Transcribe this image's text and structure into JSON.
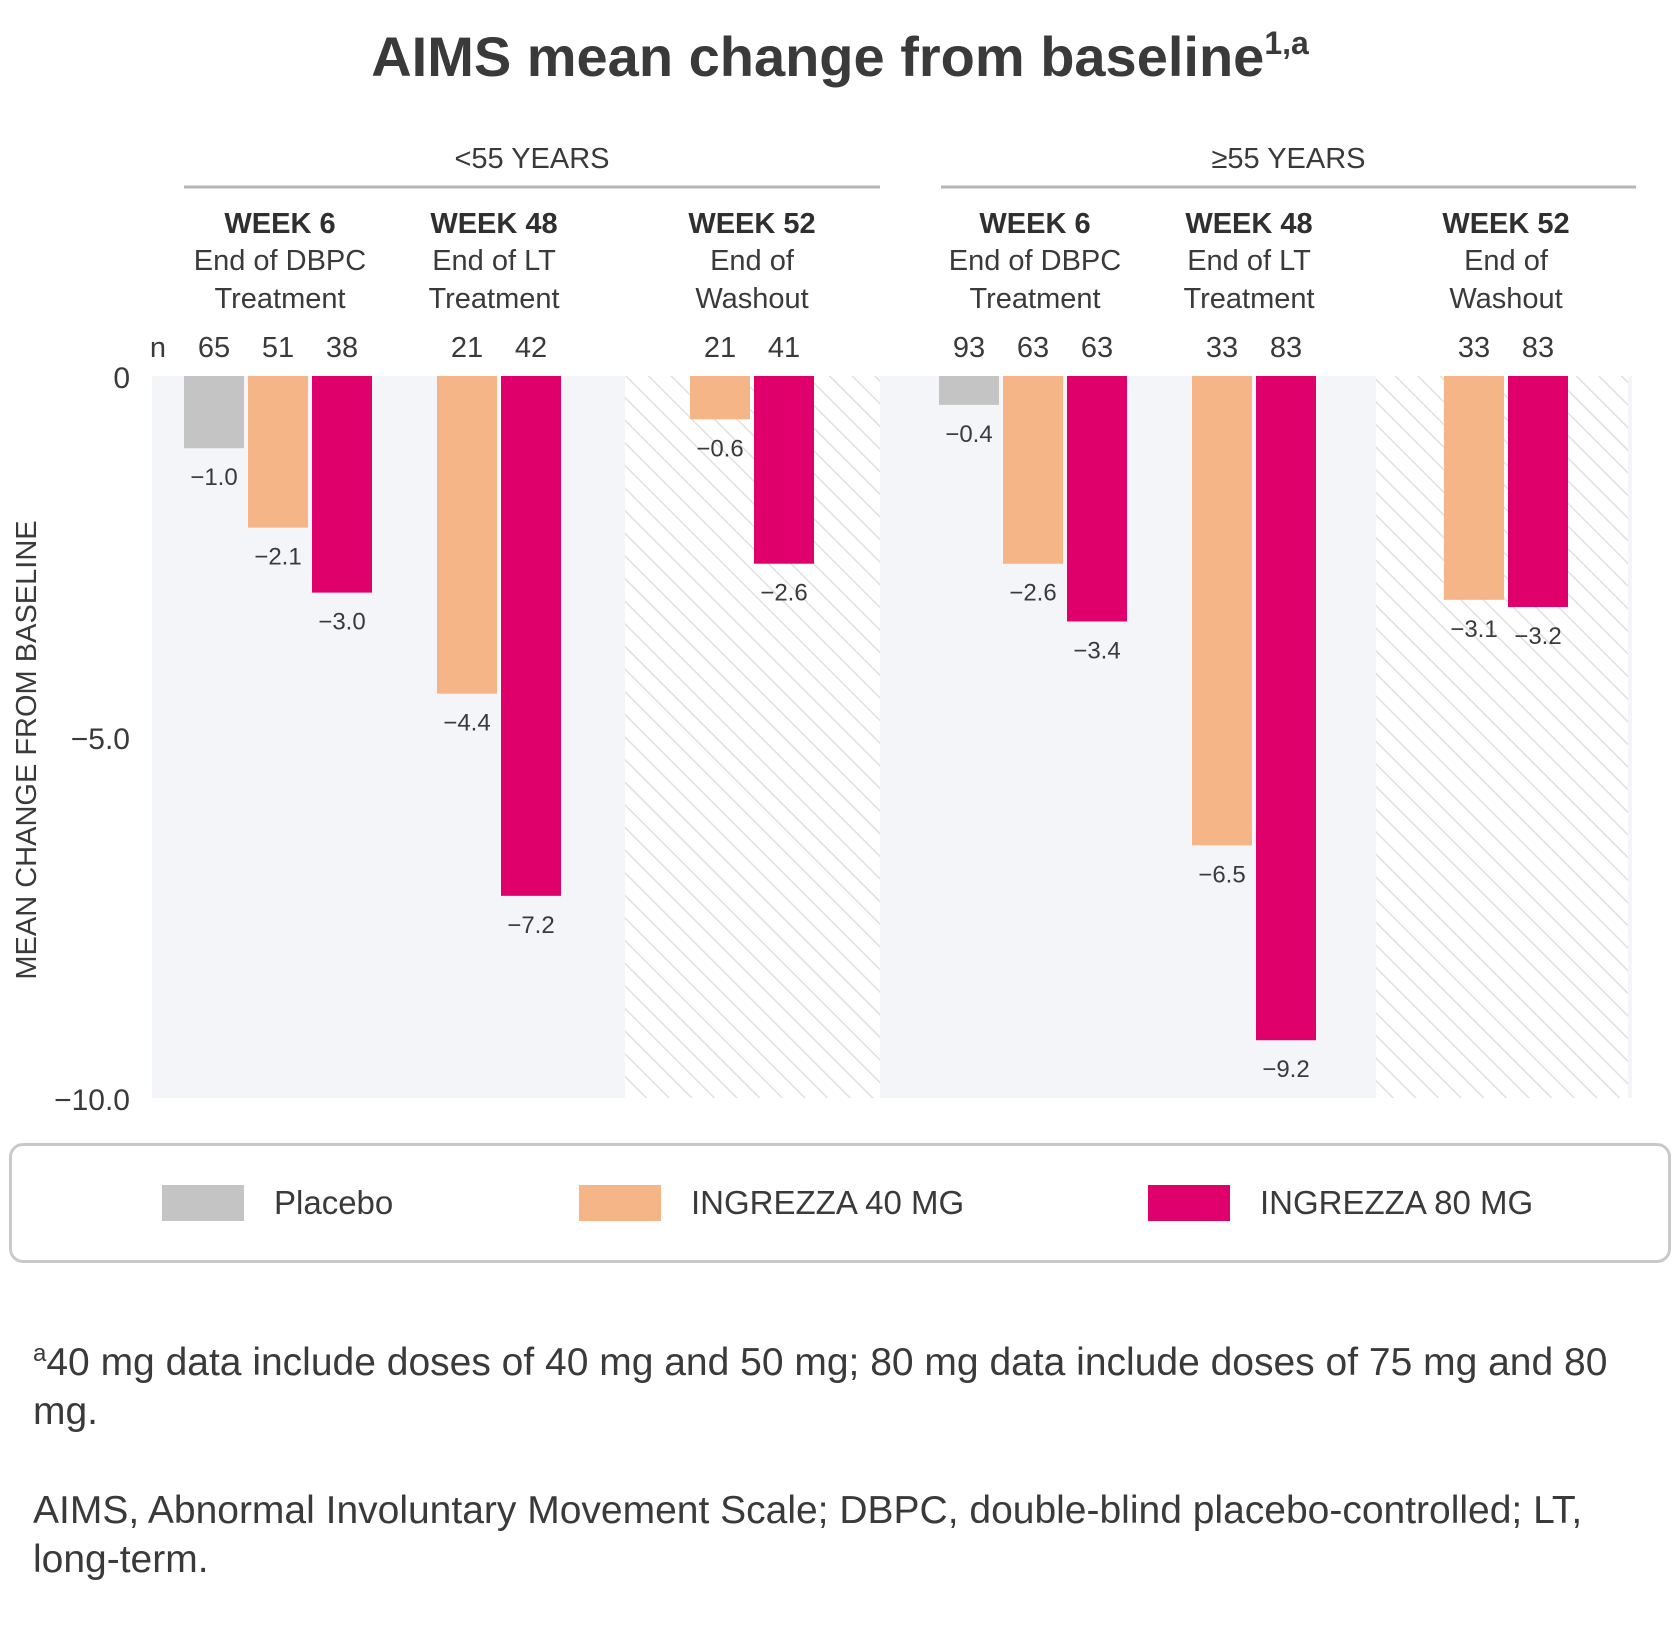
{
  "chart_data": {
    "type": "bar",
    "title": "AIMS mean change from baseline",
    "title_superscript": "1,a",
    "ylabel": "MEAN CHANGE FROM BASELINE",
    "ylim": [
      -10.0,
      0
    ],
    "yticks": [
      {
        "value": 0,
        "label": "0"
      },
      {
        "value": -5.0,
        "label": "−5.0"
      },
      {
        "value": -10.0,
        "label": "−10.0"
      }
    ],
    "n_label": "n",
    "legend_position": "bottom",
    "series": [
      {
        "name": "Placebo",
        "color": "#c4c4c4"
      },
      {
        "name": "INGREZZA 40 MG",
        "color": "#f5b587"
      },
      {
        "name": "INGREZZA 80 MG",
        "color": "#e0006b"
      }
    ],
    "age_groups": [
      {
        "label": "<55 YEARS",
        "timepoints": [
          {
            "week": "WEEK 6",
            "line1": "End of DBPC",
            "line2": "Treatment",
            "hatched": false,
            "bars": [
              {
                "series": 0,
                "n": "65",
                "value": -1.0,
                "label": "−1.0"
              },
              {
                "series": 1,
                "n": "51",
                "value": -2.1,
                "label": "−2.1"
              },
              {
                "series": 2,
                "n": "38",
                "value": -3.0,
                "label": "−3.0"
              }
            ]
          },
          {
            "week": "WEEK 48",
            "line1": "End of LT",
            "line2": "Treatment",
            "hatched": false,
            "bars": [
              {
                "series": 1,
                "n": "21",
                "value": -4.4,
                "label": "−4.4"
              },
              {
                "series": 2,
                "n": "42",
                "value": -7.2,
                "label": "−7.2"
              }
            ]
          },
          {
            "week": "WEEK 52",
            "line1": "End of",
            "line2": "Washout",
            "hatched": true,
            "bars": [
              {
                "series": 1,
                "n": "21",
                "value": -0.6,
                "label": "−0.6"
              },
              {
                "series": 2,
                "n": "41",
                "value": -2.6,
                "label": "−2.6"
              }
            ]
          }
        ]
      },
      {
        "label": "≥55 YEARS",
        "timepoints": [
          {
            "week": "WEEK 6",
            "line1": "End of DBPC",
            "line2": "Treatment",
            "hatched": false,
            "bars": [
              {
                "series": 0,
                "n": "93",
                "value": -0.4,
                "label": "−0.4"
              },
              {
                "series": 1,
                "n": "63",
                "value": -2.6,
                "label": "−2.6"
              },
              {
                "series": 2,
                "n": "63",
                "value": -3.4,
                "label": "−3.4"
              }
            ]
          },
          {
            "week": "WEEK 48",
            "line1": "End of LT",
            "line2": "Treatment",
            "hatched": false,
            "bars": [
              {
                "series": 1,
                "n": "33",
                "value": -6.5,
                "label": "−6.5"
              },
              {
                "series": 2,
                "n": "83",
                "value": -9.2,
                "label": "−9.2"
              }
            ]
          },
          {
            "week": "WEEK 52",
            "line1": "End of",
            "line2": "Washout",
            "hatched": true,
            "bars": [
              {
                "series": 1,
                "n": "33",
                "value": -3.1,
                "label": "−3.1"
              },
              {
                "series": 2,
                "n": "83",
                "value": -3.2,
                "label": "−3.2"
              }
            ]
          }
        ]
      }
    ]
  },
  "legend": {
    "placebo": "Placebo",
    "ingrezza40": "INGREZZA 40 MG",
    "ingrezza80": "INGREZZA 80 MG"
  },
  "footnotes": {
    "a_marker": "a",
    "a_text": "40 mg data include doses of 40 mg and 50 mg; 80 mg data include doses of 75 mg and 80 mg.",
    "abbreviations": "AIMS, Abnormal Involuntary Movement Scale; DBPC, double-blind placebo-controlled; LT, long-term."
  }
}
